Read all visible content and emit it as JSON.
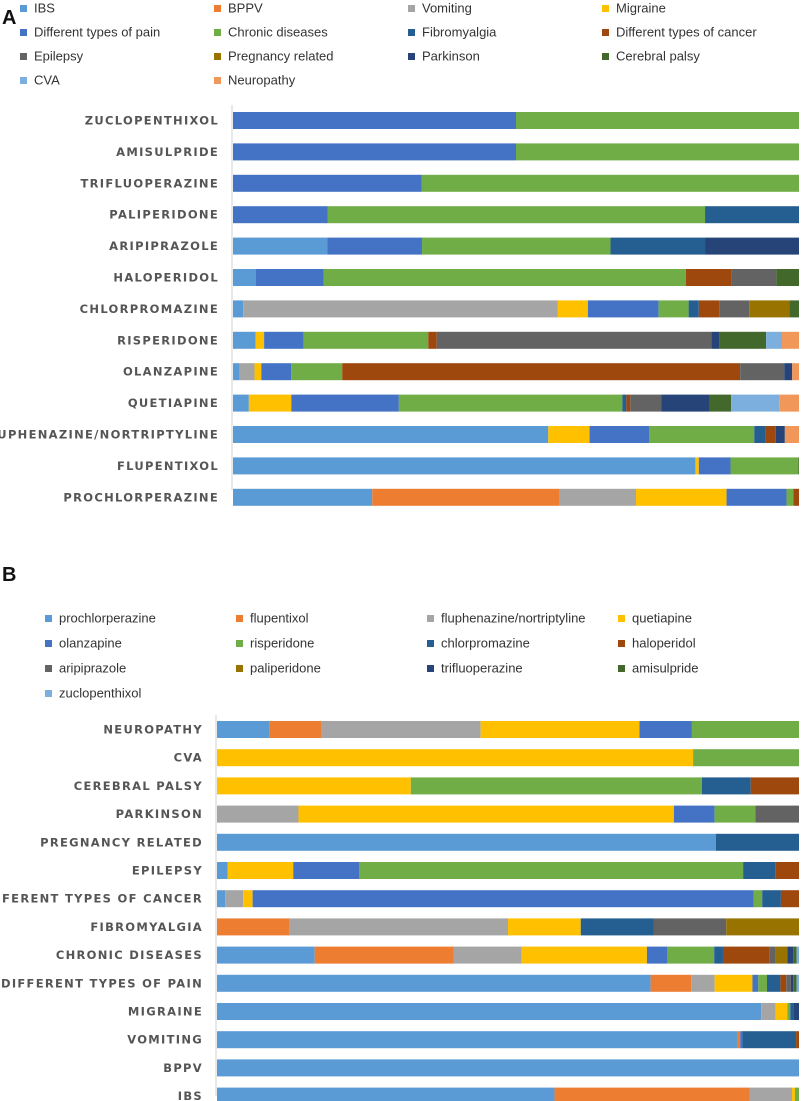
{
  "chart_data": [
    {
      "panel": "A",
      "type": "stacked-bar-100",
      "orientation": "horizontal",
      "series_names": [
        "IBS",
        "BPPV",
        "Vomiting",
        "Migraine",
        "Different types of pain",
        "Chronic diseases",
        "Fibromyalgia",
        "Different types of cancer",
        "Epilepsy",
        "Pregnancy related",
        "Parkinson",
        "Cerebral palsy",
        "CVA",
        "Neuropathy"
      ],
      "colors": [
        "#5b9bd5",
        "#ed7d31",
        "#a5a5a5",
        "#ffc000",
        "#4472c4",
        "#70ad47",
        "#255e91",
        "#9e480e",
        "#636363",
        "#997300",
        "#264478",
        "#43682b",
        "#7cafdd",
        "#f1975a"
      ],
      "categories": [
        "ZUCLOPENTHIXOL",
        "AMISULPRIDE",
        "TRIFLUOPERAZINE",
        "PALIPERIDONE",
        "ARIPIPRAZOLE",
        "HALOPERIDOL",
        "CHLORPROMAZINE",
        "RISPERIDONE",
        "OLANZAPINE",
        "QUETIAPINE",
        "FLUPHENAZINE/NORTRIPTYLINE",
        "FLUPENTIXOL",
        "PROCHLORPERAZINE"
      ],
      "values": [
        [
          0,
          0,
          0,
          0,
          50,
          50,
          0,
          0,
          0,
          0,
          0,
          0,
          0,
          0
        ],
        [
          0,
          0,
          0,
          0,
          50,
          50,
          0,
          0,
          0,
          0,
          0,
          0,
          0,
          0
        ],
        [
          0,
          0,
          0,
          0,
          33.3,
          66.7,
          0,
          0,
          0,
          0,
          0,
          0,
          0,
          0
        ],
        [
          0,
          0,
          0,
          0,
          16.7,
          66.7,
          16.6,
          0,
          0,
          0,
          0,
          0,
          0,
          0
        ],
        [
          16.7,
          0,
          0,
          0,
          16.7,
          33.3,
          16.7,
          0,
          0,
          0,
          16.6,
          0,
          0,
          0
        ],
        [
          4,
          0,
          0,
          0,
          12,
          64,
          0,
          8,
          8,
          0,
          0,
          4,
          0,
          0
        ],
        [
          1.8,
          0,
          55.6,
          5.3,
          12.5,
          5.3,
          1.8,
          3.6,
          5.3,
          7.1,
          0,
          1.7,
          0,
          0
        ],
        [
          4,
          0,
          0,
          1.5,
          7,
          22,
          0,
          1.5,
          48.5,
          0,
          1.5,
          8.2,
          2.8,
          3
        ],
        [
          1.2,
          0,
          2.6,
          1.2,
          5.3,
          9,
          0,
          70.3,
          7.8,
          0,
          1.4,
          0,
          0,
          1.2
        ],
        [
          2.8,
          0,
          0,
          7.5,
          19,
          39.5,
          0.7,
          0.7,
          5.5,
          0,
          8.5,
          3.8,
          8.5,
          3.5
        ],
        [
          55.7,
          0,
          0,
          7.3,
          10.5,
          18.6,
          2,
          1.8,
          0,
          0,
          1.6,
          0,
          0,
          2.5
        ],
        [
          81.7,
          0,
          0,
          0.6,
          5.6,
          12,
          0,
          0,
          0,
          0,
          0,
          0.1,
          0,
          0
        ],
        [
          24.6,
          33,
          13.6,
          16,
          10.6,
          1.2,
          0,
          1,
          0,
          0,
          0,
          0,
          0,
          0
        ]
      ]
    },
    {
      "panel": "B",
      "type": "stacked-bar-100",
      "orientation": "horizontal",
      "series_names": [
        "prochlorperazine",
        "flupentixol",
        "fluphenazine/nortriptyline",
        "quetiapine",
        "olanzapine",
        "risperidone",
        "chlorpromazine",
        "haloperidol",
        "aripiprazole",
        "paliperidone",
        "trifluoperazine",
        "amisulpride",
        "zuclopenthixol"
      ],
      "colors": [
        "#5b9bd5",
        "#ed7d31",
        "#a5a5a5",
        "#ffc000",
        "#4472c4",
        "#70ad47",
        "#255e91",
        "#9e480e",
        "#636363",
        "#997300",
        "#264478",
        "#43682b",
        "#7cafdd"
      ],
      "categories": [
        "NEUROPATHY",
        "CVA",
        "CEREBRAL PALSY",
        "PARKINSON",
        "PREGNANCY RELATED",
        "EPILEPSY",
        "DIFFERENT TYPES OF CANCER",
        "FIBROMYALGIA",
        "CHRONIC DISEASES",
        "DIFFERENT TYPES OF PAIN",
        "MIGRAINE",
        "VOMITING",
        "BPPV",
        "IBS"
      ],
      "values": [
        [
          9,
          9,
          27.3,
          27.3,
          9,
          18.4,
          0,
          0,
          0,
          0,
          0,
          0,
          0
        ],
        [
          0,
          0,
          0,
          81.8,
          0,
          18.2,
          0,
          0,
          0,
          0,
          0,
          0,
          0
        ],
        [
          0,
          0,
          0,
          33.3,
          0,
          50,
          8.4,
          8.3,
          0,
          0,
          0,
          0,
          0
        ],
        [
          0,
          0,
          14,
          64.5,
          7,
          7,
          0,
          0,
          7.5,
          0,
          0,
          0,
          0
        ],
        [
          85.7,
          0,
          0,
          0,
          0,
          0,
          14.3,
          0,
          0,
          0,
          0,
          0,
          0
        ],
        [
          1.8,
          0,
          0,
          11.3,
          11.3,
          66,
          5.6,
          4,
          0,
          0,
          0,
          0,
          0
        ],
        [
          1.4,
          0,
          3.1,
          1.6,
          85.8,
          1.5,
          3.2,
          3.1,
          0,
          0,
          0,
          0,
          0
        ],
        [
          0,
          12.5,
          37.5,
          12.5,
          0,
          0,
          12.5,
          0,
          12.5,
          12.5,
          0,
          0,
          0
        ],
        [
          16.7,
          23.8,
          11.6,
          21.4,
          3.5,
          8,
          1.5,
          8,
          1,
          2,
          1,
          0.6,
          0.4
        ],
        [
          74.5,
          7,
          4,
          6.5,
          1,
          1.5,
          2.3,
          1,
          0.8,
          0,
          0.4,
          0.6,
          0.4
        ],
        [
          93.5,
          0,
          2.5,
          2,
          0,
          0.5,
          0.5,
          0,
          0,
          0,
          1,
          0,
          0
        ],
        [
          89.5,
          0.4,
          0,
          0,
          0.4,
          0,
          9.2,
          0.5,
          0,
          0,
          0,
          0,
          0
        ],
        [
          100,
          0,
          0,
          0,
          0,
          0,
          0,
          0,
          0,
          0,
          0,
          0,
          0
        ],
        [
          58,
          33.5,
          7.3,
          0.5,
          0,
          0.7,
          0,
          0,
          0,
          0,
          0,
          0,
          0
        ]
      ]
    }
  ]
}
